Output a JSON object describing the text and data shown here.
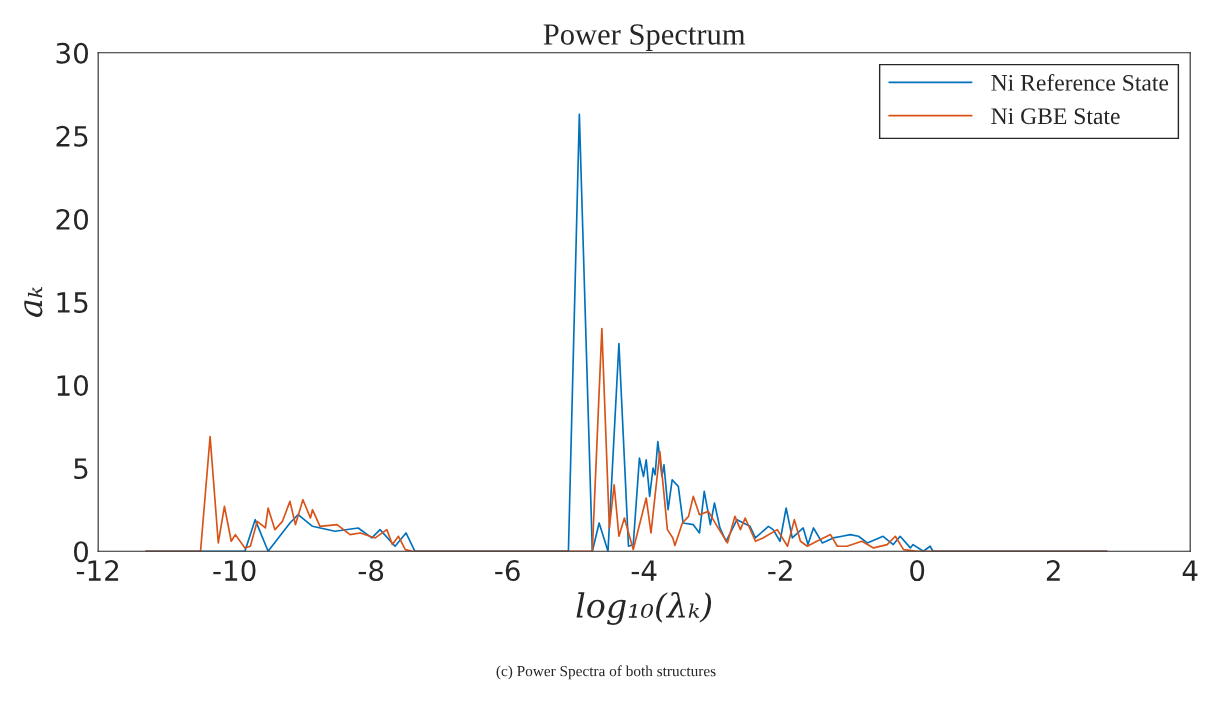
{
  "chart_data": {
    "type": "line",
    "title": "Power Spectrum",
    "xlabel": "log₁₀(λₖ)",
    "ylabel": "aₖ",
    "annotations": [
      "(c) Power Spectra of both structures"
    ],
    "xlim": [
      -12,
      4
    ],
    "xticks": [
      -12,
      -10,
      -8,
      -6,
      -4,
      -2,
      0,
      2,
      4
    ],
    "ylim": [
      0,
      30
    ],
    "yticks": [
      0,
      5,
      10,
      15,
      20,
      25,
      30
    ],
    "grid": false,
    "legend": "top right",
    "series": [
      {
        "name": "Ni Reference State",
        "color": "#0072bd",
        "x": [
          -11.3,
          -9.85,
          -9.7,
          -9.51,
          -9.19,
          -9.07,
          -8.86,
          -8.53,
          -8.19,
          -7.99,
          -7.87,
          -7.65,
          -7.49,
          -7.36,
          -5.11,
          -4.95,
          -4.76,
          -4.66,
          -4.53,
          -4.37,
          -4.23,
          -4.16,
          -4.07,
          -4.01,
          -3.97,
          -3.92,
          -3.87,
          -3.84,
          -3.8,
          -3.74,
          -3.71,
          -3.65,
          -3.59,
          -3.5,
          -3.43,
          -3.28,
          -3.19,
          -3.12,
          -3.03,
          -2.97,
          -2.89,
          -2.8,
          -2.64,
          -2.45,
          -2.37,
          -2.18,
          -2.11,
          -2.01,
          -1.92,
          -1.83,
          -1.67,
          -1.6,
          -1.52,
          -1.39,
          -1.23,
          -1.1,
          -0.98,
          -0.86,
          -0.73,
          -0.5,
          -0.35,
          -0.25,
          -0.1,
          -0.06,
          0.09,
          0.19,
          0.23,
          2.78
        ],
        "values": [
          0,
          0,
          1.9,
          0,
          1.7,
          2.2,
          1.5,
          1.2,
          1.4,
          0.8,
          1.3,
          0.3,
          1.1,
          0,
          0,
          26.3,
          0,
          1.7,
          0,
          12.5,
          0.3,
          0.4,
          5.6,
          4.5,
          5.5,
          3.3,
          5.0,
          4.6,
          6.6,
          4.5,
          5.2,
          2.5,
          4.3,
          3.9,
          1.7,
          1.6,
          1.1,
          3.6,
          1.6,
          2.9,
          1.4,
          0.6,
          1.9,
          1.5,
          0.8,
          1.5,
          1.3,
          0.6,
          2.6,
          0.8,
          1.4,
          0.4,
          1.4,
          0.5,
          0.8,
          0.9,
          1.0,
          0.9,
          0.5,
          0.9,
          0.4,
          0.9,
          0.2,
          0.4,
          0,
          0.3,
          0,
          0
        ]
      },
      {
        "name": "Ni GBE State",
        "color": "#d95319",
        "x": [
          -11.3,
          -10.5,
          -10.36,
          -10.24,
          -10.15,
          -10.05,
          -9.99,
          -9.85,
          -9.77,
          -9.67,
          -9.55,
          -9.51,
          -9.41,
          -9.3,
          -9.19,
          -9.11,
          -9.0,
          -8.89,
          -8.86,
          -8.75,
          -8.5,
          -8.31,
          -8.16,
          -7.94,
          -7.77,
          -7.69,
          -7.6,
          -7.5,
          -7.4,
          -4.76,
          -4.62,
          -4.51,
          -4.44,
          -4.37,
          -4.29,
          -4.16,
          -3.97,
          -3.9,
          -3.77,
          -3.66,
          -3.58,
          -3.55,
          -3.44,
          -3.35,
          -3.28,
          -3.19,
          -3.06,
          -2.93,
          -2.78,
          -2.67,
          -2.59,
          -2.52,
          -2.37,
          -2.26,
          -2.05,
          -1.9,
          -1.8,
          -1.71,
          -1.61,
          -1.47,
          -1.27,
          -1.17,
          -1.03,
          -0.81,
          -0.64,
          -0.44,
          -0.32,
          -0.2,
          0.0,
          2.78
        ],
        "values": [
          0,
          0,
          6.9,
          0.5,
          2.7,
          0.6,
          1.0,
          0.2,
          0.3,
          1.8,
          1.4,
          2.6,
          1.3,
          1.8,
          3.0,
          1.6,
          3.1,
          2.0,
          2.5,
          1.5,
          1.6,
          1.0,
          1.1,
          0.8,
          1.3,
          0.4,
          0.9,
          0.1,
          0,
          0,
          13.4,
          1.4,
          4.0,
          0.9,
          2.0,
          0.1,
          3.2,
          1.1,
          6.0,
          1.3,
          0.8,
          0.35,
          1.7,
          2.1,
          3.3,
          2.2,
          2.4,
          1.5,
          0.5,
          2.1,
          1.3,
          2.0,
          0.6,
          0.8,
          1.3,
          0.3,
          1.9,
          0.6,
          0.3,
          0.6,
          1.0,
          0.3,
          0.3,
          0.6,
          0.2,
          0.4,
          0.9,
          0.1,
          0,
          0
        ]
      }
    ]
  }
}
